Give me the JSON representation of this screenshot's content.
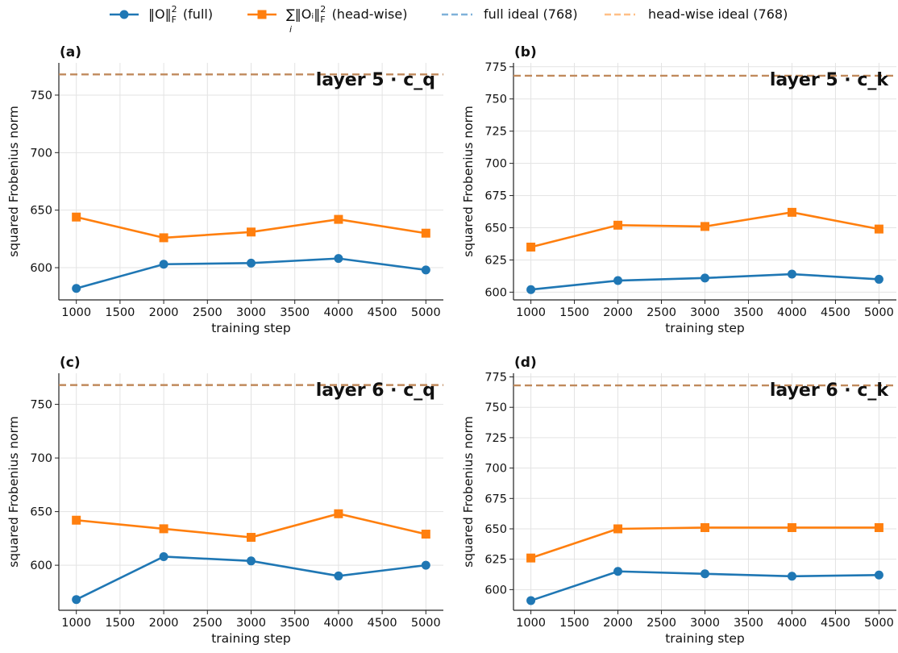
{
  "legend": {
    "items": [
      {
        "label": "‖O‖",
        "sup": "2",
        "sub": "F",
        "suffix": "(full)",
        "kind": "full"
      },
      {
        "label": "∑‖Oᵢ‖",
        "sup": "2",
        "sub": "F",
        "under": "i",
        "suffix": "(head-wise)",
        "kind": "head"
      },
      {
        "label": "full ideal (768)",
        "kind": "full-ideal"
      },
      {
        "label": "head-wise ideal (768)",
        "kind": "head-ideal"
      }
    ],
    "colors": {
      "full": "#1f77b4",
      "head": "#ff7f0e",
      "full_ideal": "#7fb1d9",
      "head_ideal": "#ffbf86",
      "ideal_overlap": "#c08a5c"
    }
  },
  "chart_data": [
    {
      "type": "line",
      "panel_label": "(a)",
      "title": "layer 5 · c_q",
      "xlabel": "training step",
      "ylabel": "squared Frobenius norm",
      "x": [
        1000,
        2000,
        3000,
        4000,
        5000
      ],
      "xticks": [
        1000,
        1500,
        2000,
        2500,
        3000,
        3500,
        4000,
        4500,
        5000
      ],
      "yticks": [
        600,
        650,
        700,
        750
      ],
      "xlim": [
        800,
        5200
      ],
      "ylim": [
        572,
        778
      ],
      "series": [
        {
          "key": "full",
          "values": [
            582,
            603,
            604,
            608,
            598
          ]
        },
        {
          "key": "head",
          "values": [
            644,
            626,
            631,
            642,
            630
          ]
        }
      ],
      "ideal": 768
    },
    {
      "type": "line",
      "panel_label": "(b)",
      "title": "layer 5 · c_k",
      "xlabel": "training step",
      "ylabel": "squared Frobenius norm",
      "x": [
        1000,
        2000,
        3000,
        4000,
        5000
      ],
      "xticks": [
        1000,
        1500,
        2000,
        2500,
        3000,
        3500,
        4000,
        4500,
        5000
      ],
      "yticks": [
        600,
        625,
        650,
        675,
        700,
        725,
        750,
        775
      ],
      "xlim": [
        800,
        5200
      ],
      "ylim": [
        594,
        778
      ],
      "series": [
        {
          "key": "full",
          "values": [
            602,
            609,
            611,
            614,
            610
          ]
        },
        {
          "key": "head",
          "values": [
            635,
            652,
            651,
            662,
            649
          ]
        }
      ],
      "ideal": 768
    },
    {
      "type": "line",
      "panel_label": "(c)",
      "title": "layer 6 · c_q",
      "xlabel": "training step",
      "ylabel": "squared Frobenius norm",
      "x": [
        1000,
        2000,
        3000,
        4000,
        5000
      ],
      "xticks": [
        1000,
        1500,
        2000,
        2500,
        3000,
        3500,
        4000,
        4500,
        5000
      ],
      "yticks": [
        600,
        650,
        700,
        750
      ],
      "xlim": [
        800,
        5200
      ],
      "ylim": [
        558,
        779
      ],
      "series": [
        {
          "key": "full",
          "values": [
            568,
            608,
            604,
            590,
            600
          ]
        },
        {
          "key": "head",
          "values": [
            642,
            634,
            626,
            648,
            629
          ]
        }
      ],
      "ideal": 768
    },
    {
      "type": "line",
      "panel_label": "(d)",
      "title": "layer 6 · c_k",
      "xlabel": "training step",
      "ylabel": "squared Frobenius norm",
      "x": [
        1000,
        2000,
        3000,
        4000,
        5000
      ],
      "xticks": [
        1000,
        1500,
        2000,
        2500,
        3000,
        3500,
        4000,
        4500,
        5000
      ],
      "yticks": [
        600,
        625,
        650,
        675,
        700,
        725,
        750,
        775
      ],
      "xlim": [
        800,
        5200
      ],
      "ylim": [
        583,
        778
      ],
      "series": [
        {
          "key": "full",
          "values": [
            591,
            615,
            613,
            611,
            612
          ]
        },
        {
          "key": "head",
          "values": [
            626,
            650,
            651,
            651,
            651
          ]
        }
      ],
      "ideal": 768
    }
  ]
}
